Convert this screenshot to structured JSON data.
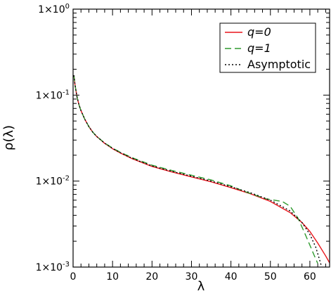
{
  "chart_data": {
    "type": "line",
    "xlabel": "λ",
    "ylabel": "ρ(λ)",
    "xlim": [
      0,
      65
    ],
    "ylim": [
      0.001,
      1
    ],
    "y_scale": "log",
    "grid": false,
    "legend_position": "top-right",
    "x_ticks": [
      0,
      10,
      20,
      30,
      40,
      50,
      60
    ],
    "x_tick_labels": [
      "0",
      "10",
      "20",
      "30",
      "40",
      "50",
      "60"
    ],
    "y_ticks": [
      0.001,
      0.01,
      0.1,
      1
    ],
    "y_tick_labels": [
      {
        "base": "1×10",
        "exp": "-3"
      },
      {
        "base": "1×10",
        "exp": "-2"
      },
      {
        "base": "1×10",
        "exp": "-1"
      },
      {
        "base": "1×10",
        "exp": "0"
      }
    ],
    "series": [
      {
        "name": "q=0",
        "color": "#e8141b",
        "dash": "solid",
        "x": [
          0.2,
          0.5,
          1,
          1.5,
          2,
          3,
          4,
          5,
          6,
          8,
          10,
          12,
          15,
          20,
          25,
          30,
          35,
          40,
          45,
          50,
          55,
          58,
          60,
          62,
          64,
          65
        ],
        "y": [
          0.17,
          0.13,
          0.095,
          0.077,
          0.066,
          0.052,
          0.043,
          0.037,
          0.033,
          0.0275,
          0.0238,
          0.0212,
          0.0182,
          0.0148,
          0.0128,
          0.0112,
          0.0098,
          0.0084,
          0.0071,
          0.0058,
          0.0043,
          0.0033,
          0.0026,
          0.0019,
          0.00135,
          0.00112
        ]
      },
      {
        "name": "q=1",
        "color": "#2e9a2e",
        "dash": "dashed",
        "x": [
          0.2,
          0.5,
          1,
          1.5,
          2,
          3,
          4,
          5,
          6,
          8,
          10,
          12,
          15,
          20,
          25,
          30,
          35,
          40,
          43,
          46,
          49,
          51,
          53,
          55,
          57,
          58.5,
          60,
          61,
          62
        ],
        "y": [
          0.17,
          0.13,
          0.095,
          0.077,
          0.066,
          0.052,
          0.043,
          0.037,
          0.033,
          0.0278,
          0.0242,
          0.0216,
          0.0187,
          0.0153,
          0.0133,
          0.0117,
          0.0103,
          0.0088,
          0.0077,
          0.0069,
          0.0062,
          0.006,
          0.0058,
          0.0051,
          0.0037,
          0.0026,
          0.0018,
          0.0014,
          0.0011
        ]
      },
      {
        "name": "Asymptotic",
        "color": "#000000",
        "dash": "dotted",
        "x": [
          0.2,
          0.5,
          1,
          1.5,
          2,
          3,
          4,
          5,
          6,
          8,
          10,
          12,
          15,
          20,
          25,
          30,
          35,
          40,
          45,
          50,
          55,
          58,
          60,
          61.5,
          62.5,
          63
        ],
        "y": [
          0.17,
          0.13,
          0.095,
          0.077,
          0.066,
          0.052,
          0.043,
          0.037,
          0.033,
          0.0276,
          0.024,
          0.0214,
          0.0184,
          0.015,
          0.013,
          0.0114,
          0.01,
          0.0086,
          0.0073,
          0.006,
          0.0045,
          0.0033,
          0.0024,
          0.0017,
          0.0012,
          0.001
        ]
      }
    ]
  }
}
